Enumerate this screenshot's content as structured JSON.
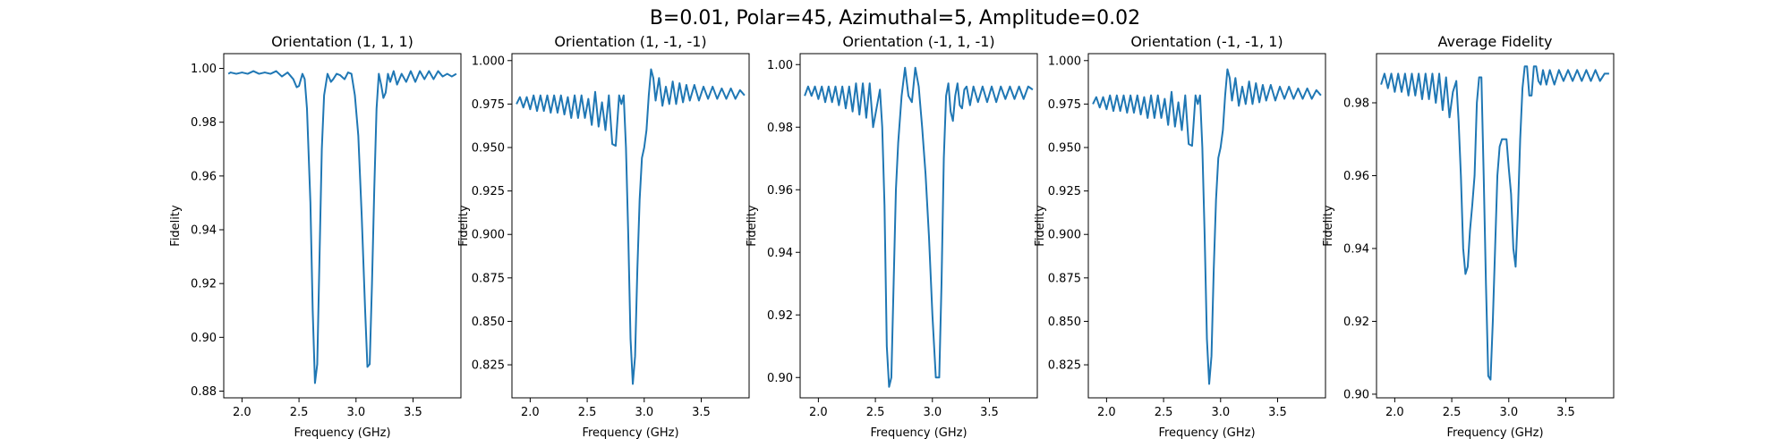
{
  "figure": {
    "suptitle": "B=0.01, Polar=45, Azimuthal=5, Amplitude=0.02",
    "line_color": "#1f77b4"
  },
  "chart_data": [
    {
      "type": "line",
      "title": "Orientation (1, 1, 1)",
      "xlabel": "Frequency (GHz)",
      "ylabel": "Fidelity",
      "xlim": [
        1.84,
        3.92
      ],
      "ylim": [
        0.8775,
        1.0055
      ],
      "xticks": [
        2.0,
        2.5,
        3.0,
        3.5
      ],
      "xtick_labels": [
        "2.0",
        "2.5",
        "3.0",
        "3.5"
      ],
      "yticks": [
        0.88,
        0.9,
        0.92,
        0.94,
        0.96,
        0.98,
        1.0
      ],
      "ytick_labels": [
        "0.88",
        "0.90",
        "0.92",
        "0.94",
        "0.96",
        "0.98",
        "1.00"
      ],
      "series": [
        {
          "x": [
            1.88,
            1.9,
            1.95,
            2.0,
            2.05,
            2.1,
            2.15,
            2.2,
            2.25,
            2.3,
            2.35,
            2.4,
            2.45,
            2.48,
            2.5,
            2.53,
            2.55,
            2.57,
            2.6,
            2.62,
            2.64,
            2.66,
            2.68,
            2.7,
            2.72,
            2.75,
            2.78,
            2.8,
            2.83,
            2.86,
            2.9,
            2.93,
            2.96,
            2.99,
            3.02,
            3.05,
            3.08,
            3.1,
            3.12,
            3.14,
            3.16,
            3.18,
            3.2,
            3.22,
            3.24,
            3.26,
            3.28,
            3.3,
            3.33,
            3.36,
            3.4,
            3.44,
            3.48,
            3.52,
            3.56,
            3.6,
            3.64,
            3.68,
            3.72,
            3.76,
            3.8,
            3.84,
            3.88
          ],
          "y": [
            0.998,
            0.9985,
            0.998,
            0.9985,
            0.998,
            0.999,
            0.998,
            0.9985,
            0.998,
            0.999,
            0.997,
            0.9985,
            0.996,
            0.993,
            0.9935,
            0.998,
            0.996,
            0.985,
            0.95,
            0.91,
            0.883,
            0.89,
            0.93,
            0.97,
            0.99,
            0.998,
            0.995,
            0.996,
            0.998,
            0.9975,
            0.996,
            0.9985,
            0.998,
            0.99,
            0.975,
            0.945,
            0.91,
            0.889,
            0.89,
            0.92,
            0.955,
            0.985,
            0.998,
            0.994,
            0.989,
            0.991,
            0.998,
            0.995,
            0.999,
            0.994,
            0.998,
            0.995,
            0.999,
            0.995,
            0.999,
            0.996,
            0.999,
            0.996,
            0.999,
            0.997,
            0.998,
            0.997,
            0.998
          ]
        }
      ]
    },
    {
      "type": "line",
      "title": "Orientation (1, -1, -1)",
      "xlabel": "Frequency (GHz)",
      "ylabel": "Fidelity",
      "xlim": [
        1.84,
        3.92
      ],
      "ylim": [
        0.806,
        1.004
      ],
      "xticks": [
        2.0,
        2.5,
        3.0,
        3.5
      ],
      "xtick_labels": [
        "2.0",
        "2.5",
        "3.0",
        "3.5"
      ],
      "yticks": [
        0.825,
        0.85,
        0.875,
        0.9,
        0.925,
        0.95,
        0.975,
        1.0
      ],
      "ytick_labels": [
        "0.825",
        "0.850",
        "0.875",
        "0.900",
        "0.925",
        "0.950",
        "0.975",
        "1.000"
      ],
      "series": [
        {
          "x": [
            1.88,
            1.91,
            1.94,
            1.97,
            2.0,
            2.03,
            2.06,
            2.09,
            2.12,
            2.15,
            2.18,
            2.21,
            2.24,
            2.27,
            2.3,
            2.33,
            2.36,
            2.39,
            2.42,
            2.45,
            2.48,
            2.51,
            2.54,
            2.57,
            2.6,
            2.63,
            2.66,
            2.69,
            2.72,
            2.75,
            2.78,
            2.8,
            2.82,
            2.84,
            2.86,
            2.88,
            2.9,
            2.92,
            2.94,
            2.96,
            2.98,
            3.0,
            3.02,
            3.04,
            3.06,
            3.08,
            3.1,
            3.13,
            3.16,
            3.19,
            3.22,
            3.25,
            3.28,
            3.31,
            3.34,
            3.37,
            3.4,
            3.44,
            3.48,
            3.52,
            3.56,
            3.6,
            3.64,
            3.68,
            3.72,
            3.76,
            3.8,
            3.84,
            3.88
          ],
          "y": [
            0.975,
            0.979,
            0.973,
            0.979,
            0.972,
            0.98,
            0.971,
            0.98,
            0.971,
            0.98,
            0.97,
            0.98,
            0.97,
            0.98,
            0.969,
            0.979,
            0.967,
            0.98,
            0.967,
            0.98,
            0.967,
            0.978,
            0.963,
            0.982,
            0.962,
            0.976,
            0.96,
            0.98,
            0.952,
            0.951,
            0.98,
            0.975,
            0.98,
            0.95,
            0.9,
            0.84,
            0.814,
            0.83,
            0.88,
            0.92,
            0.944,
            0.95,
            0.96,
            0.98,
            0.995,
            0.99,
            0.977,
            0.99,
            0.974,
            0.985,
            0.975,
            0.988,
            0.975,
            0.987,
            0.976,
            0.986,
            0.977,
            0.986,
            0.977,
            0.985,
            0.978,
            0.985,
            0.978,
            0.984,
            0.978,
            0.984,
            0.978,
            0.983,
            0.98
          ]
        }
      ]
    },
    {
      "type": "line",
      "title": "Orientation (-1, 1, -1)",
      "xlabel": "Frequency (GHz)",
      "ylabel": "Fidelity",
      "xlim": [
        1.84,
        3.92
      ],
      "ylim": [
        0.8935,
        1.0035
      ],
      "xticks": [
        2.0,
        2.5,
        3.0,
        3.5
      ],
      "xtick_labels": [
        "2.0",
        "2.5",
        "3.0",
        "3.5"
      ],
      "yticks": [
        0.9,
        0.92,
        0.94,
        0.96,
        0.98,
        1.0
      ],
      "ytick_labels": [
        "0.90",
        "0.92",
        "0.94",
        "0.96",
        "0.98",
        "1.00"
      ],
      "series": [
        {
          "x": [
            1.88,
            1.91,
            1.94,
            1.97,
            2.0,
            2.03,
            2.06,
            2.09,
            2.12,
            2.15,
            2.18,
            2.21,
            2.24,
            2.27,
            2.3,
            2.33,
            2.36,
            2.39,
            2.42,
            2.45,
            2.48,
            2.51,
            2.54,
            2.56,
            2.58,
            2.6,
            2.62,
            2.64,
            2.66,
            2.68,
            2.7,
            2.73,
            2.76,
            2.79,
            2.82,
            2.85,
            2.88,
            2.91,
            2.94,
            2.97,
            3.0,
            3.03,
            3.06,
            3.08,
            3.1,
            3.12,
            3.14,
            3.16,
            3.18,
            3.2,
            3.22,
            3.24,
            3.26,
            3.28,
            3.3,
            3.33,
            3.36,
            3.4,
            3.44,
            3.48,
            3.52,
            3.56,
            3.6,
            3.64,
            3.68,
            3.72,
            3.76,
            3.8,
            3.84,
            3.88
          ],
          "y": [
            0.99,
            0.993,
            0.99,
            0.993,
            0.989,
            0.993,
            0.988,
            0.993,
            0.988,
            0.993,
            0.987,
            0.993,
            0.986,
            0.993,
            0.985,
            0.994,
            0.984,
            0.994,
            0.983,
            0.994,
            0.98,
            0.986,
            0.992,
            0.98,
            0.955,
            0.91,
            0.897,
            0.9,
            0.93,
            0.96,
            0.975,
            0.99,
            0.999,
            0.99,
            0.988,
            0.999,
            0.993,
            0.98,
            0.965,
            0.945,
            0.92,
            0.9,
            0.9,
            0.93,
            0.97,
            0.99,
            0.994,
            0.985,
            0.982,
            0.99,
            0.994,
            0.987,
            0.986,
            0.992,
            0.993,
            0.987,
            0.993,
            0.988,
            0.993,
            0.988,
            0.993,
            0.988,
            0.993,
            0.989,
            0.993,
            0.989,
            0.993,
            0.989,
            0.993,
            0.992
          ]
        }
      ]
    },
    {
      "type": "line",
      "title": "Orientation (-1, -1, 1)",
      "xlabel": "Frequency (GHz)",
      "ylabel": "Fidelity",
      "xlim": [
        1.84,
        3.92
      ],
      "ylim": [
        0.806,
        1.004
      ],
      "xticks": [
        2.0,
        2.5,
        3.0,
        3.5
      ],
      "xtick_labels": [
        "2.0",
        "2.5",
        "3.0",
        "3.5"
      ],
      "yticks": [
        0.825,
        0.85,
        0.875,
        0.9,
        0.925,
        0.95,
        0.975,
        1.0
      ],
      "ytick_labels": [
        "0.825",
        "0.850",
        "0.875",
        "0.900",
        "0.925",
        "0.950",
        "0.975",
        "1.000"
      ],
      "series": [
        {
          "x": [
            1.88,
            1.91,
            1.94,
            1.97,
            2.0,
            2.03,
            2.06,
            2.09,
            2.12,
            2.15,
            2.18,
            2.21,
            2.24,
            2.27,
            2.3,
            2.33,
            2.36,
            2.39,
            2.42,
            2.45,
            2.48,
            2.51,
            2.54,
            2.57,
            2.6,
            2.63,
            2.66,
            2.69,
            2.72,
            2.75,
            2.78,
            2.8,
            2.82,
            2.84,
            2.86,
            2.88,
            2.9,
            2.92,
            2.94,
            2.96,
            2.98,
            3.0,
            3.02,
            3.04,
            3.06,
            3.08,
            3.1,
            3.13,
            3.16,
            3.19,
            3.22,
            3.25,
            3.28,
            3.31,
            3.34,
            3.37,
            3.4,
            3.44,
            3.48,
            3.52,
            3.56,
            3.6,
            3.64,
            3.68,
            3.72,
            3.76,
            3.8,
            3.84,
            3.88
          ],
          "y": [
            0.975,
            0.979,
            0.973,
            0.979,
            0.972,
            0.98,
            0.971,
            0.98,
            0.971,
            0.98,
            0.97,
            0.98,
            0.97,
            0.98,
            0.969,
            0.979,
            0.967,
            0.98,
            0.967,
            0.98,
            0.967,
            0.978,
            0.963,
            0.982,
            0.962,
            0.976,
            0.96,
            0.98,
            0.952,
            0.951,
            0.98,
            0.975,
            0.98,
            0.95,
            0.9,
            0.84,
            0.814,
            0.83,
            0.88,
            0.92,
            0.944,
            0.95,
            0.96,
            0.98,
            0.995,
            0.99,
            0.977,
            0.99,
            0.974,
            0.985,
            0.975,
            0.988,
            0.975,
            0.987,
            0.976,
            0.986,
            0.977,
            0.986,
            0.977,
            0.985,
            0.978,
            0.985,
            0.978,
            0.984,
            0.978,
            0.984,
            0.978,
            0.983,
            0.98
          ]
        }
      ]
    },
    {
      "type": "line",
      "title": "Average Fidelity",
      "xlabel": "Frequency (GHz)",
      "ylabel": "Fidelity",
      "xlim": [
        1.84,
        3.92
      ],
      "ylim": [
        0.899,
        0.9935
      ],
      "xticks": [
        2.0,
        2.5,
        3.0,
        3.5
      ],
      "xtick_labels": [
        "2.0",
        "2.5",
        "3.0",
        "3.5"
      ],
      "yticks": [
        0.9,
        0.92,
        0.94,
        0.96,
        0.98
      ],
      "ytick_labels": [
        "0.90",
        "0.92",
        "0.94",
        "0.96",
        "0.98"
      ],
      "series": [
        {
          "x": [
            1.88,
            1.91,
            1.94,
            1.97,
            2.0,
            2.03,
            2.06,
            2.09,
            2.12,
            2.15,
            2.18,
            2.21,
            2.24,
            2.27,
            2.3,
            2.33,
            2.36,
            2.39,
            2.42,
            2.45,
            2.48,
            2.51,
            2.54,
            2.56,
            2.58,
            2.6,
            2.62,
            2.64,
            2.66,
            2.68,
            2.7,
            2.72,
            2.74,
            2.76,
            2.78,
            2.8,
            2.82,
            2.84,
            2.86,
            2.88,
            2.9,
            2.92,
            2.94,
            2.96,
            2.98,
            3.0,
            3.02,
            3.04,
            3.06,
            3.08,
            3.1,
            3.12,
            3.14,
            3.16,
            3.18,
            3.2,
            3.22,
            3.24,
            3.26,
            3.28,
            3.3,
            3.33,
            3.36,
            3.4,
            3.44,
            3.48,
            3.52,
            3.56,
            3.6,
            3.64,
            3.68,
            3.72,
            3.76,
            3.8,
            3.84,
            3.88
          ],
          "y": [
            0.985,
            0.988,
            0.984,
            0.988,
            0.983,
            0.988,
            0.983,
            0.988,
            0.982,
            0.988,
            0.982,
            0.988,
            0.981,
            0.988,
            0.981,
            0.988,
            0.98,
            0.988,
            0.978,
            0.987,
            0.976,
            0.983,
            0.986,
            0.975,
            0.96,
            0.94,
            0.933,
            0.935,
            0.945,
            0.952,
            0.96,
            0.98,
            0.987,
            0.987,
            0.96,
            0.93,
            0.905,
            0.904,
            0.92,
            0.94,
            0.96,
            0.968,
            0.97,
            0.97,
            0.97,
            0.962,
            0.955,
            0.94,
            0.935,
            0.95,
            0.97,
            0.984,
            0.99,
            0.99,
            0.982,
            0.982,
            0.99,
            0.99,
            0.986,
            0.985,
            0.989,
            0.985,
            0.989,
            0.985,
            0.989,
            0.986,
            0.989,
            0.986,
            0.989,
            0.986,
            0.989,
            0.986,
            0.989,
            0.986,
            0.988,
            0.988
          ]
        }
      ]
    }
  ]
}
